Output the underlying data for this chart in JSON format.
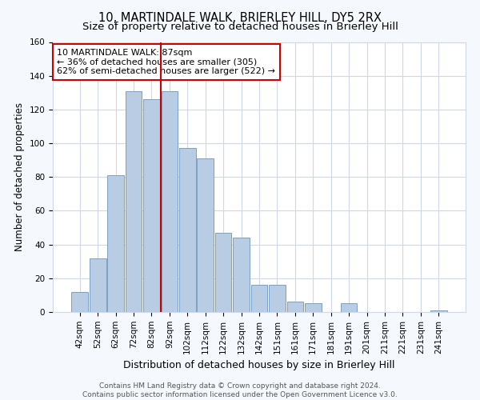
{
  "title": "10, MARTINDALE WALK, BRIERLEY HILL, DY5 2RX",
  "subtitle": "Size of property relative to detached houses in Brierley Hill",
  "xlabel": "Distribution of detached houses by size in Brierley Hill",
  "ylabel": "Number of detached properties",
  "footer_line1": "Contains HM Land Registry data © Crown copyright and database right 2024.",
  "footer_line2": "Contains public sector information licensed under the Open Government Licence v3.0.",
  "bar_labels": [
    "42sqm",
    "52sqm",
    "62sqm",
    "72sqm",
    "82sqm",
    "92sqm",
    "102sqm",
    "112sqm",
    "122sqm",
    "132sqm",
    "142sqm",
    "151sqm",
    "161sqm",
    "171sqm",
    "181sqm",
    "191sqm",
    "201sqm",
    "211sqm",
    "221sqm",
    "231sqm",
    "241sqm"
  ],
  "bar_values": [
    12,
    32,
    81,
    131,
    126,
    131,
    97,
    91,
    47,
    44,
    16,
    16,
    6,
    5,
    0,
    5,
    0,
    0,
    0,
    0,
    1
  ],
  "bar_color": "#b8cce4",
  "bar_edge_color": "#7aa0c4",
  "vline_x": 4.5,
  "vline_color": "#cc0000",
  "annotation_title": "10 MARTINDALE WALK: 87sqm",
  "annotation_line1": "← 36% of detached houses are smaller (305)",
  "annotation_line2": "62% of semi-detached houses are larger (522) →",
  "annotation_box_color": "#cc0000",
  "ylim": [
    0,
    160
  ],
  "yticks": [
    0,
    20,
    40,
    60,
    80,
    100,
    120,
    140,
    160
  ],
  "bg_color": "#f5f8fd",
  "plot_bg_color": "#ffffff",
  "grid_color": "#d0d8e8",
  "title_fontsize": 10.5,
  "subtitle_fontsize": 9.5,
  "xlabel_fontsize": 9,
  "ylabel_fontsize": 8.5,
  "tick_fontsize": 7.5,
  "annotation_fontsize": 8,
  "footer_fontsize": 6.5
}
